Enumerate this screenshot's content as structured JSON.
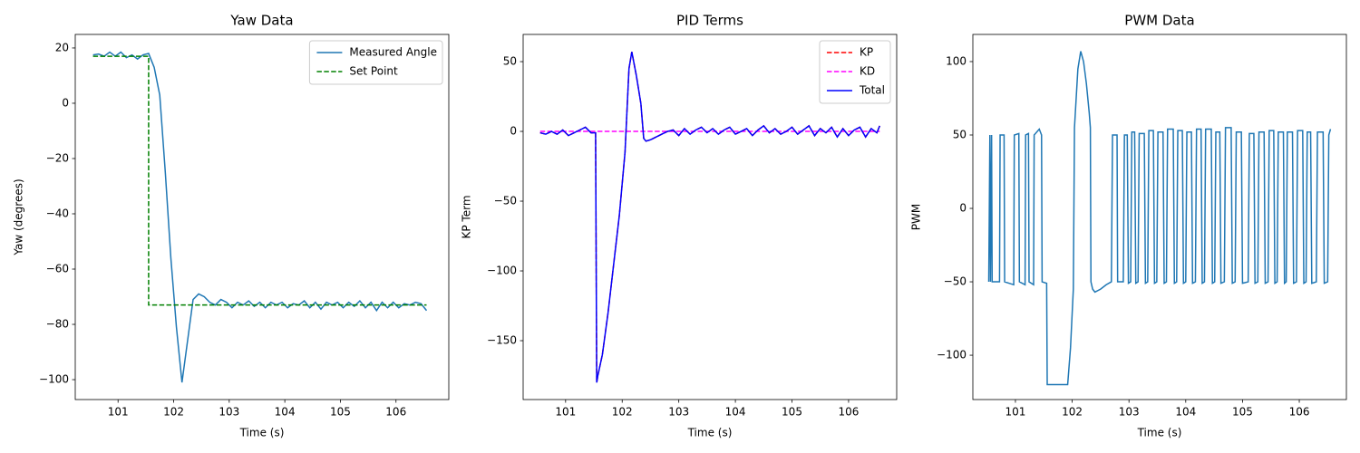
{
  "chart_data": [
    {
      "type": "line",
      "title": "Yaw Data",
      "xlabel": "Time (s)",
      "ylabel": "Yaw (degrees)",
      "xlim": [
        100.23,
        106.95
      ],
      "ylim": [
        -107.2,
        24.9
      ],
      "xticks": [
        101,
        102,
        103,
        104,
        105,
        106
      ],
      "yticks": [
        {
          "value": -100,
          "label": "−100"
        },
        {
          "value": -80,
          "label": "−80"
        },
        {
          "value": -60,
          "label": "−60"
        },
        {
          "value": -40,
          "label": "−40"
        },
        {
          "value": -20,
          "label": "−20"
        },
        0,
        20
      ],
      "grid": false,
      "legend": "upper right",
      "series": [
        {
          "name": "Measured Angle",
          "color": "#1f77b4",
          "linestyle": "solid",
          "x": [
            100.55,
            100.65,
            100.75,
            100.85,
            100.95,
            101.05,
            101.15,
            101.25,
            101.35,
            101.45,
            101.55,
            101.65,
            101.75,
            101.85,
            101.95,
            102.05,
            102.15,
            102.25,
            102.35,
            102.45,
            102.55,
            102.65,
            102.75,
            102.85,
            102.95,
            103.05,
            103.15,
            103.25,
            103.35,
            103.45,
            103.55,
            103.65,
            103.75,
            103.85,
            103.95,
            104.05,
            104.15,
            104.25,
            104.35,
            104.45,
            104.55,
            104.65,
            104.75,
            104.85,
            104.95,
            105.05,
            105.15,
            105.25,
            105.35,
            105.45,
            105.55,
            105.65,
            105.75,
            105.85,
            105.95,
            106.05,
            106.15,
            106.25,
            106.35,
            106.45,
            106.55
          ],
          "values": [
            17.5,
            17.8,
            17,
            18.5,
            17,
            18.5,
            16.5,
            17.5,
            16,
            17.5,
            18,
            13,
            3,
            -25,
            -56,
            -81,
            -101,
            -86,
            -71,
            -69,
            -70,
            -72,
            -73,
            -71,
            -72,
            -74,
            -72,
            -73,
            -71.5,
            -73.5,
            -72,
            -74,
            -72,
            -73,
            -72,
            -74,
            -72.5,
            -73,
            -71.5,
            -74,
            -72,
            -74.5,
            -72,
            -73,
            -72,
            -74,
            -72,
            -73.5,
            -71.5,
            -74,
            -72,
            -75,
            -72,
            -74,
            -72,
            -74,
            -72.5,
            -73,
            -72,
            -72.5,
            -75
          ]
        },
        {
          "name": "Set Point",
          "color": "green",
          "linestyle": "dashed",
          "x": [
            100.55,
            101.55,
            101.55,
            106.55
          ],
          "values": [
            17,
            17,
            -73,
            -73
          ]
        }
      ]
    },
    {
      "type": "line",
      "title": "PID Terms",
      "xlabel": "Time (s)",
      "ylabel": "KP Term",
      "xlim": [
        100.25,
        106.85
      ],
      "ylim": [
        -192.2,
        69.5
      ],
      "xticks": [
        101,
        102,
        103,
        104,
        105,
        106
      ],
      "yticks": [
        {
          "value": -150,
          "label": "−150"
        },
        {
          "value": -100,
          "label": "−100"
        },
        {
          "value": -50,
          "label": "−50"
        },
        0,
        50
      ],
      "grid": false,
      "legend": "upper right",
      "series": [
        {
          "name": "KP",
          "color": "red",
          "linestyle": "dashed",
          "x": [
            100.55,
            100.65,
            100.75,
            100.85,
            100.95,
            101.05,
            101.15,
            101.25,
            101.35,
            101.45,
            101.53,
            101.55,
            101.57,
            101.65,
            101.75,
            101.85,
            101.95,
            102.05,
            102.12,
            102.17,
            102.25,
            102.33,
            102.38,
            102.42,
            102.5,
            102.6,
            102.7,
            102.8,
            102.9,
            103.0,
            103.1,
            103.2,
            103.3,
            103.4,
            103.5,
            103.6,
            103.7,
            103.8,
            103.9,
            104.0,
            104.1,
            104.2,
            104.3,
            104.4,
            104.5,
            104.6,
            104.7,
            104.8,
            104.9,
            105.0,
            105.1,
            105.2,
            105.3,
            105.4,
            105.5,
            105.6,
            105.7,
            105.8,
            105.9,
            106.0,
            106.1,
            106.2,
            106.3,
            106.4,
            106.5,
            106.55
          ],
          "values": [
            -1,
            -2,
            0,
            -2,
            1,
            -3,
            -1,
            1,
            3,
            -1,
            -1,
            -180,
            -175,
            -160,
            -130,
            -95,
            -60,
            -15,
            45,
            57,
            40,
            20,
            -5,
            -7,
            -6,
            -4,
            -2,
            0,
            1,
            -3,
            2,
            -2,
            1,
            3,
            -1,
            2,
            -2,
            1,
            3,
            -2,
            0,
            2,
            -3,
            1,
            4,
            -1,
            2,
            -2,
            0,
            3,
            -2,
            1,
            4,
            -3,
            2,
            -1,
            3,
            -4,
            2,
            -3,
            1,
            3,
            -4,
            2,
            -1,
            4
          ]
        },
        {
          "name": "KD",
          "color": "magenta",
          "linestyle": "dashed",
          "x": [
            100.55,
            106.55
          ],
          "values": [
            0,
            0
          ]
        },
        {
          "name": "Total",
          "color": "blue",
          "linestyle": "solid",
          "x": [
            100.55,
            100.65,
            100.75,
            100.85,
            100.95,
            101.05,
            101.15,
            101.25,
            101.35,
            101.45,
            101.53,
            101.55,
            101.57,
            101.65,
            101.75,
            101.85,
            101.95,
            102.05,
            102.12,
            102.17,
            102.25,
            102.33,
            102.38,
            102.42,
            102.5,
            102.6,
            102.7,
            102.8,
            102.9,
            103.0,
            103.1,
            103.2,
            103.3,
            103.4,
            103.5,
            103.6,
            103.7,
            103.8,
            103.9,
            104.0,
            104.1,
            104.2,
            104.3,
            104.4,
            104.5,
            104.6,
            104.7,
            104.8,
            104.9,
            105.0,
            105.1,
            105.2,
            105.3,
            105.4,
            105.5,
            105.6,
            105.7,
            105.8,
            105.9,
            106.0,
            106.1,
            106.2,
            106.3,
            106.4,
            106.5,
            106.55
          ],
          "values": [
            -1,
            -2,
            0,
            -2,
            1,
            -3,
            -1,
            1,
            3,
            -1,
            -1,
            -180,
            -175,
            -160,
            -130,
            -95,
            -60,
            -15,
            45,
            57,
            40,
            20,
            -5,
            -7,
            -6,
            -4,
            -2,
            0,
            1,
            -3,
            2,
            -2,
            1,
            3,
            -1,
            2,
            -2,
            1,
            3,
            -2,
            0,
            2,
            -3,
            1,
            4,
            -1,
            2,
            -2,
            0,
            3,
            -2,
            1,
            4,
            -3,
            2,
            -1,
            3,
            -4,
            2,
            -3,
            1,
            3,
            -4,
            2,
            -1,
            4
          ]
        }
      ]
    },
    {
      "type": "line",
      "title": "PWM Data",
      "xlabel": "Time (s)",
      "ylabel": "PWM",
      "xlim": [
        100.25,
        106.83
      ],
      "ylim": [
        -130.2,
        118.5
      ],
      "xticks": [
        101,
        102,
        103,
        104,
        105,
        106
      ],
      "yticks": [
        {
          "value": -100,
          "label": "−100"
        },
        {
          "value": -50,
          "label": "−50"
        },
        0,
        50,
        100
      ],
      "grid": false,
      "series": [
        {
          "color": "#1f77b4",
          "linestyle": "solid",
          "x": [
            100.53,
            100.55,
            100.56,
            100.58,
            100.59,
            100.72,
            100.73,
            100.8,
            100.81,
            100.97,
            100.98,
            101.06,
            101.07,
            101.17,
            101.18,
            101.23,
            101.24,
            101.32,
            101.33,
            101.42,
            101.46,
            101.47,
            101.55,
            101.56,
            101.92,
            101.97,
            102.02,
            102.04,
            102.1,
            102.15,
            102.2,
            102.25,
            102.3,
            102.32,
            102.33,
            102.36,
            102.4,
            102.5,
            102.6,
            102.69,
            102.71,
            102.79,
            102.8,
            102.9,
            102.92,
            102.97,
            102.99,
            103.03,
            103.05,
            103.1,
            103.12,
            103.16,
            103.18,
            103.27,
            103.29,
            103.33,
            103.35,
            103.43,
            103.45,
            103.49,
            103.51,
            103.6,
            103.62,
            103.66,
            103.68,
            103.78,
            103.8,
            103.84,
            103.86,
            103.94,
            103.96,
            104.0,
            104.02,
            104.1,
            104.12,
            104.17,
            104.19,
            104.27,
            104.29,
            104.33,
            104.35,
            104.45,
            104.47,
            104.51,
            104.53,
            104.6,
            104.62,
            104.68,
            104.7,
            104.8,
            104.82,
            104.87,
            104.89,
            104.98,
            105.0,
            105.1,
            105.12,
            105.2,
            105.22,
            105.27,
            105.29,
            105.38,
            105.4,
            105.45,
            105.47,
            105.55,
            105.57,
            105.61,
            105.63,
            105.72,
            105.74,
            105.77,
            105.79,
            105.88,
            105.9,
            105.95,
            105.97,
            106.06,
            106.08,
            106.12,
            106.14,
            106.2,
            106.22,
            106.3,
            106.32,
            106.42,
            106.44,
            106.5,
            106.52,
            106.55
          ],
          "values": [
            -50,
            50,
            -50,
            50,
            -50,
            -50,
            50,
            50,
            -50,
            -52,
            50,
            51,
            -50,
            -52,
            50,
            51,
            -50,
            -52,
            50,
            54,
            50,
            -50,
            -51,
            -120,
            -120,
            -95,
            -55,
            55,
            95,
            107,
            100,
            85,
            65,
            55,
            -50,
            -55,
            -57,
            -55,
            -52,
            -50,
            50,
            50,
            -50,
            -50,
            50,
            50,
            -51,
            -50,
            52,
            52,
            -51,
            -50,
            51,
            51,
            -51,
            -50,
            53,
            53,
            -51,
            -50,
            52,
            52,
            -51,
            -50,
            54,
            54,
            -51,
            -50,
            53,
            53,
            -51,
            -50,
            52,
            52,
            -51,
            -50,
            54,
            54,
            -51,
            -50,
            54,
            54,
            -51,
            -50,
            52,
            52,
            -51,
            -50,
            55,
            55,
            -51,
            -50,
            52,
            52,
            -51,
            -50,
            51,
            51,
            -51,
            -50,
            52,
            52,
            -51,
            -50,
            53,
            53,
            -51,
            -50,
            52,
            52,
            -51,
            -50,
            52,
            52,
            -51,
            -50,
            53,
            53,
            -51,
            -50,
            52,
            52,
            -51,
            -50,
            52,
            52,
            -51,
            -50,
            50,
            54
          ]
        }
      ]
    }
  ]
}
